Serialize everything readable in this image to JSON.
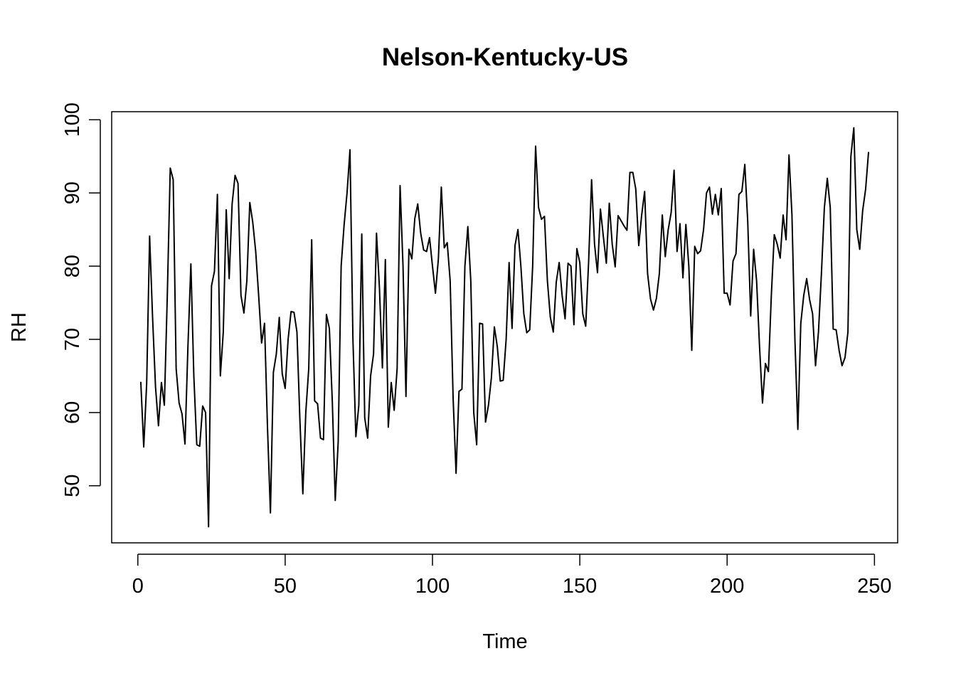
{
  "chart_data": {
    "type": "line",
    "title": "Nelson-Kentucky-US",
    "x_label": "Time",
    "y_label": "RH",
    "x": [
      1,
      2,
      3,
      4,
      5,
      6,
      7,
      8,
      9,
      10,
      11,
      12,
      13,
      14,
      15,
      16,
      17,
      18,
      19,
      20,
      21,
      22,
      23,
      24,
      25,
      26,
      27,
      28,
      29,
      30,
      31,
      32,
      33,
      34,
      35,
      36,
      37,
      38,
      39,
      40,
      41,
      42,
      43,
      44,
      45,
      46,
      47,
      48,
      49,
      50,
      51,
      52,
      53,
      54,
      55,
      56,
      57,
      58,
      59,
      60,
      61,
      62,
      63,
      64,
      65,
      66,
      67,
      68,
      69,
      70,
      71,
      72,
      73,
      74,
      75,
      76,
      77,
      78,
      79,
      80,
      81,
      82,
      83,
      84,
      85,
      86,
      87,
      88,
      89,
      90,
      91,
      92,
      93,
      94,
      95,
      96,
      97,
      98,
      99,
      100,
      101,
      102,
      103,
      104,
      105,
      106,
      107,
      108,
      109,
      110,
      111,
      112,
      113,
      114,
      115,
      116,
      117,
      118,
      119,
      120,
      121,
      122,
      123,
      124,
      125,
      126,
      127,
      128,
      129,
      130,
      131,
      132,
      133,
      134,
      135,
      136,
      137,
      138,
      139,
      140,
      141,
      142,
      143,
      144,
      145,
      146,
      147,
      148,
      149,
      150,
      151,
      152,
      153,
      154,
      155,
      156,
      157,
      158,
      159,
      160,
      161,
      162,
      163,
      164,
      165,
      166,
      167,
      168,
      169,
      170,
      171,
      172,
      173,
      174,
      175,
      176,
      177,
      178,
      179,
      180,
      181,
      182,
      183,
      184,
      185,
      186,
      187,
      188,
      189,
      190,
      191,
      192,
      193,
      194,
      195,
      196,
      197,
      198,
      199,
      200,
      201,
      202,
      203,
      204,
      205,
      206,
      207,
      208,
      209,
      210,
      211,
      212,
      213,
      214,
      215,
      216,
      217,
      218,
      219,
      220,
      221,
      222,
      223,
      224,
      225,
      226,
      227,
      228,
      229,
      230,
      231,
      232,
      233,
      234,
      235,
      236,
      237,
      238,
      239,
      240,
      241,
      242,
      243,
      244,
      245,
      246,
      247,
      248
    ],
    "series": [
      {
        "name": "RH",
        "color": "#000000",
        "values": [
          64.2,
          55.3,
          64,
          84.1,
          73,
          63.5,
          58.2,
          64.1,
          61,
          76,
          93.4,
          91.8,
          66,
          61.3,
          59.8,
          55.7,
          69,
          80.3,
          65,
          55.6,
          55.4,
          60.9,
          60,
          44.4,
          77.3,
          79.3,
          89.8,
          65,
          71,
          87.7,
          78.3,
          88.5,
          92.4,
          91.3,
          76,
          73.6,
          78,
          88.7,
          86,
          82,
          76,
          69.5,
          72.2,
          58,
          46.3,
          65.5,
          68,
          73,
          65.3,
          63.3,
          70,
          73.8,
          73.7,
          71,
          59,
          48.9,
          60,
          66,
          83.6,
          61.6,
          61.2,
          56.5,
          56.3,
          73.4,
          71.5,
          61.5,
          48,
          56,
          80,
          85.6,
          90,
          95.9,
          70,
          56.7,
          61,
          84.4,
          59.3,
          56.5,
          65,
          68,
          84.5,
          77,
          66.1,
          80.9,
          58,
          64.1,
          60.3,
          66,
          91,
          80,
          62.2,
          82.3,
          81,
          86.5,
          88.5,
          84.5,
          82.2,
          82,
          83.9,
          80,
          76.3,
          81,
          90.8,
          82.5,
          83.2,
          78,
          62,
          51.7,
          62.9,
          63.2,
          80,
          85.4,
          78,
          60,
          55.6,
          72.2,
          72.1,
          58.7,
          61,
          64.8,
          71.7,
          69,
          64.3,
          64.4,
          70,
          80.5,
          71.5,
          82.8,
          85,
          80,
          73.5,
          70.9,
          71.3,
          80,
          96.4,
          88,
          86.4,
          86.8,
          78,
          73,
          71,
          77.8,
          80.5,
          76,
          72.8,
          80.4,
          80,
          72,
          82.4,
          80.5,
          73.5,
          71.8,
          80.7,
          91.8,
          83,
          79.1,
          87.8,
          84,
          80.4,
          88.6,
          83,
          79.9,
          86.9,
          86.2,
          85.5,
          84.9,
          92.8,
          92.8,
          90.5,
          82.8,
          87,
          90.2,
          79,
          75.5,
          74,
          75.6,
          79,
          87,
          81.3,
          85,
          87.3,
          93.1,
          82,
          85.8,
          78.4,
          85.7,
          80,
          68.5,
          82.7,
          81.7,
          82.1,
          85,
          90,
          90.8,
          87.1,
          89.8,
          87,
          90.6,
          76.3,
          76.3,
          74.7,
          80.7,
          81.7,
          89.8,
          90.2,
          93.9,
          86,
          73.2,
          82.3,
          78,
          69,
          61.3,
          66.7,
          65.6,
          76,
          84.3,
          83,
          81.1,
          87,
          83.6,
          95.2,
          87,
          70,
          57.7,
          72.2,
          76,
          78.3,
          75.4,
          73.5,
          66.4,
          71,
          79,
          88,
          92,
          88,
          71.4,
          71.3,
          68.5,
          66.4,
          67.5,
          71,
          95,
          98.9,
          85,
          82.3,
          87.6,
          90.5,
          95.6
        ]
      }
    ],
    "xlim": [
      -8.88,
      257.88
    ],
    "ylim": [
      42.2,
      101.1
    ],
    "xticks": [
      0,
      50,
      100,
      150,
      200,
      250
    ],
    "yticks": [
      50,
      60,
      70,
      80,
      90,
      100
    ]
  }
}
